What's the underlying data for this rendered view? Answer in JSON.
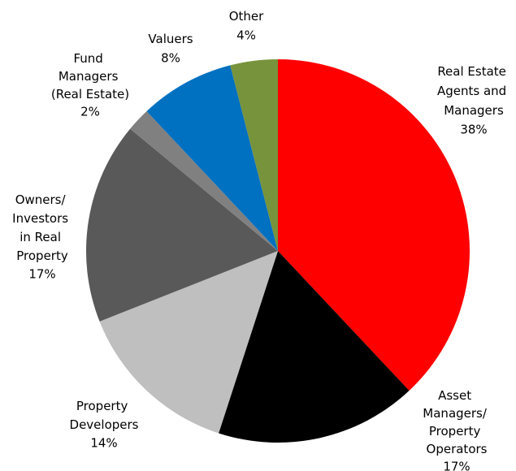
{
  "chart_data": {
    "type": "pie",
    "categories": [
      "Real Estate Agents and Managers",
      "Asset Managers/ Property Operators",
      "Property Developers",
      "Owners/ Investors in Real Property",
      "Fund Managers (Real Estate)",
      "Valuers",
      "Other"
    ],
    "values": [
      38,
      17,
      14,
      17,
      2,
      8,
      4
    ],
    "value_labels": [
      "38%",
      "17%",
      "14%",
      "17%",
      "2%",
      "8%",
      "4%"
    ],
    "colors": [
      "#ff0000",
      "#000000",
      "#bfbfbf",
      "#595959",
      "#808080",
      "#0070c0",
      "#77933c"
    ]
  }
}
